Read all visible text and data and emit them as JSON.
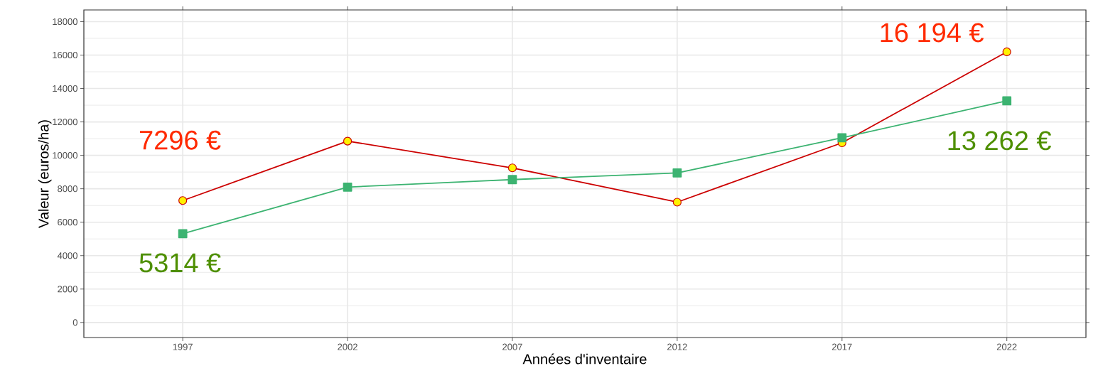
{
  "chart_data": {
    "type": "line",
    "xlabel": "Années d'inventaire",
    "ylabel": "Valeur (euros/ha)",
    "x": [
      1997,
      2002,
      2007,
      2012,
      2017,
      2022
    ],
    "series": [
      {
        "color": "#cc0000",
        "marker": "circle",
        "values": [
          7296,
          10850,
          9250,
          7200,
          10750,
          16194
        ],
        "value_labels": [
          "7296 €",
          null,
          null,
          null,
          null,
          "16 194 €"
        ]
      },
      {
        "color": "#3cb371",
        "marker": "square",
        "values": [
          5314,
          8100,
          8550,
          8950,
          11050,
          13262
        ],
        "value_labels": [
          "5314 €",
          null,
          null,
          null,
          null,
          "13 262 €"
        ]
      }
    ],
    "xlim": [
      1994,
      2024.4
    ],
    "ylim": [
      -900,
      18700
    ],
    "xticks": [
      1997,
      2002,
      2007,
      2012,
      2017,
      2022
    ],
    "yticks": [
      0,
      2000,
      4000,
      6000,
      8000,
      10000,
      12000,
      14000,
      16000,
      18000
    ],
    "grid": true,
    "line_style": "solid"
  }
}
